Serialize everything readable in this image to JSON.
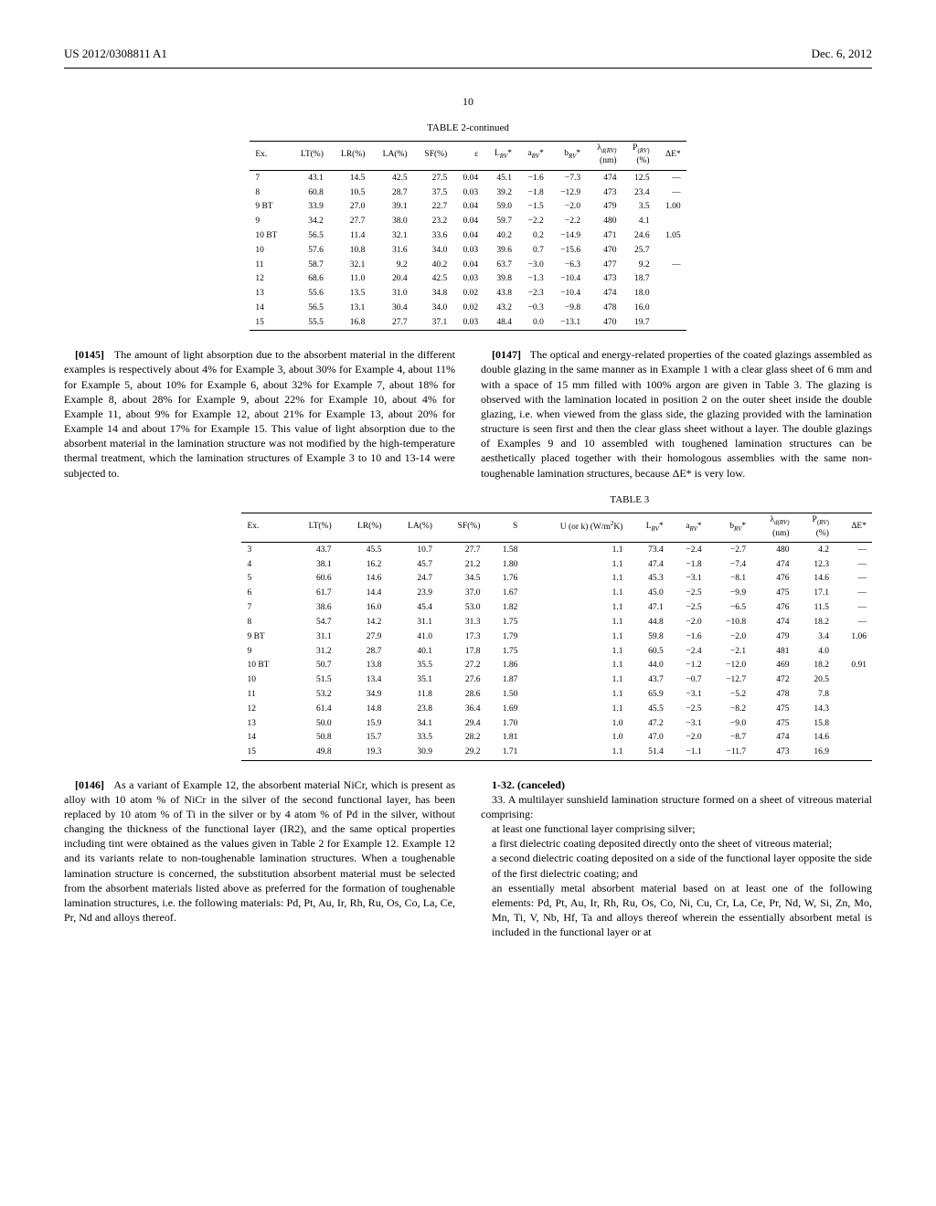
{
  "header": {
    "left": "US 2012/0308811 A1",
    "right": "Dec. 6, 2012"
  },
  "page_number": "10",
  "table2": {
    "title": "TABLE 2-continued",
    "columns": [
      "Ex.",
      "LT(%)",
      "LR(%)",
      "LA(%)",
      "SF(%)",
      "ε",
      "L_RV*",
      "a_RV*",
      "b_RV*",
      "λ_d(RV) (nm)",
      "P_(RV) (%)",
      "ΔE*"
    ],
    "rows": [
      [
        "7",
        "43.1",
        "14.5",
        "42.5",
        "27.5",
        "0.04",
        "45.1",
        "−1.6",
        "−7.3",
        "474",
        "12.5",
        "—"
      ],
      [
        "8",
        "60.8",
        "10.5",
        "28.7",
        "37.5",
        "0.03",
        "39.2",
        "−1.8",
        "−12.9",
        "473",
        "23.4",
        "—"
      ],
      [
        "9 BT",
        "33.9",
        "27.0",
        "39.1",
        "22.7",
        "0.04",
        "59.0",
        "−1.5",
        "−2.0",
        "479",
        "3.5",
        "1.00"
      ],
      [
        "9",
        "34.2",
        "27.7",
        "38.0",
        "23.2",
        "0.04",
        "59.7",
        "−2.2",
        "−2.2",
        "480",
        "4.1",
        ""
      ],
      [
        "10 BT",
        "56.5",
        "11.4",
        "32.1",
        "33.6",
        "0.04",
        "40.2",
        "0.2",
        "−14.9",
        "471",
        "24.6",
        "1.05"
      ],
      [
        "10",
        "57.6",
        "10.8",
        "31.6",
        "34.0",
        "0.03",
        "39.6",
        "0.7",
        "−15.6",
        "470",
        "25.7",
        ""
      ],
      [
        "11",
        "58.7",
        "32.1",
        "9.2",
        "40.2",
        "0.04",
        "63.7",
        "−3.0",
        "−6.3",
        "477",
        "9.2",
        "—"
      ],
      [
        "12",
        "68.6",
        "11.0",
        "20.4",
        "42.5",
        "0.03",
        "39.8",
        "−1.3",
        "−10.4",
        "473",
        "18.7",
        ""
      ],
      [
        "13",
        "55.6",
        "13.5",
        "31.0",
        "34.8",
        "0.02",
        "43.8",
        "−2.3",
        "−10.4",
        "474",
        "18.0",
        ""
      ],
      [
        "14",
        "56.5",
        "13.1",
        "30.4",
        "34.0",
        "0.02",
        "43.2",
        "−0.3",
        "−9.8",
        "478",
        "16.0",
        ""
      ],
      [
        "15",
        "55.5",
        "16.8",
        "27.7",
        "37.1",
        "0.03",
        "48.4",
        "0.0",
        "−13.1",
        "470",
        "19.7",
        ""
      ]
    ]
  },
  "para145": {
    "num": "[0145]",
    "text": "The amount of light absorption due to the absorbent material in the different examples is respectively about 4% for Example 3, about 30% for Example 4, about 11% for Example 5, about 10% for Example 6, about 32% for Example 7, about 18% for Example 8, about 28% for Example 9, about 22% for Example 10, about 4% for Example 11, about 9% for Example 12, about 21% for Example 13, about 20% for Example 14 and about 17% for Example 15. This value of light absorption due to the absorbent material in the lamination structure was not modified by the high-temperature thermal treatment, which the lamination structures of Example 3 to 10 and 13-14 were subjected to."
  },
  "para147": {
    "num": "[0147]",
    "text": "The optical and energy-related properties of the coated glazings assembled as double glazing in the same manner as in Example 1 with a clear glass sheet of 6 mm and with a space of 15 mm filled with 100% argon are given in Table 3. The glazing is observed with the lamination located in position 2 on the outer sheet inside the double glazing, i.e. when viewed from the glass side, the glazing provided with the lamination structure is seen first and then the clear glass sheet without a layer. The double glazings of Examples 9 and 10 assembled with toughened lamination structures can be aesthetically placed together with their homologous assemblies with the same non-toughenable lamination structures, because ΔE* is very low."
  },
  "table3": {
    "title": "TABLE 3",
    "columns": [
      "Ex.",
      "LT(%)",
      "LR(%)",
      "LA(%)",
      "SF(%)",
      "S",
      "U (or k) (W/m²K)",
      "L_RV*",
      "a_RV*",
      "b_RV*",
      "λ_d(RV) (nm)",
      "P_(RV) (%)",
      "ΔE*"
    ],
    "rows": [
      [
        "3",
        "43.7",
        "45.5",
        "10.7",
        "27.7",
        "1.58",
        "1.1",
        "73.4",
        "−2.4",
        "−2.7",
        "480",
        "4.2",
        "—"
      ],
      [
        "4",
        "38.1",
        "16.2",
        "45.7",
        "21.2",
        "1.80",
        "1.1",
        "47.4",
        "−1.8",
        "−7.4",
        "474",
        "12.3",
        "—"
      ],
      [
        "5",
        "60.6",
        "14.6",
        "24.7",
        "34.5",
        "1.76",
        "1.1",
        "45.3",
        "−3.1",
        "−8.1",
        "476",
        "14.6",
        "—"
      ],
      [
        "6",
        "61.7",
        "14.4",
        "23.9",
        "37.0",
        "1.67",
        "1.1",
        "45.0",
        "−2.5",
        "−9.9",
        "475",
        "17.1",
        "—"
      ],
      [
        "7",
        "38.6",
        "16.0",
        "45.4",
        "53.0",
        "1.82",
        "1.1",
        "47.1",
        "−2.5",
        "−6.5",
        "476",
        "11.5",
        "—"
      ],
      [
        "8",
        "54.7",
        "14.2",
        "31.1",
        "31.3",
        "1.75",
        "1.1",
        "44.8",
        "−2.0",
        "−10.8",
        "474",
        "18.2",
        "—"
      ],
      [
        "9 BT",
        "31.1",
        "27.9",
        "41.0",
        "17.3",
        "1.79",
        "1.1",
        "59.8",
        "−1.6",
        "−2.0",
        "479",
        "3.4",
        "1.06"
      ],
      [
        "9",
        "31.2",
        "28.7",
        "40.1",
        "17.8",
        "1.75",
        "1.1",
        "60.5",
        "−2.4",
        "−2.1",
        "481",
        "4.0",
        ""
      ],
      [
        "10 BT",
        "50.7",
        "13.8",
        "35.5",
        "27.2",
        "1.86",
        "1.1",
        "44.0",
        "−1.2",
        "−12.0",
        "469",
        "18.2",
        "0.91"
      ],
      [
        "10",
        "51.5",
        "13.4",
        "35.1",
        "27.6",
        "1.87",
        "1.1",
        "43.7",
        "−0.7",
        "−12.7",
        "472",
        "20.5",
        ""
      ],
      [
        "11",
        "53.2",
        "34.9",
        "11.8",
        "28.6",
        "1.50",
        "1.1",
        "65.9",
        "−3.1",
        "−5.2",
        "478",
        "7.8",
        ""
      ],
      [
        "12",
        "61.4",
        "14.8",
        "23.8",
        "36.4",
        "1.69",
        "1.1",
        "45.5",
        "−2.5",
        "−8.2",
        "475",
        "14.3",
        ""
      ],
      [
        "13",
        "50.0",
        "15.9",
        "34.1",
        "29.4",
        "1.70",
        "1.0",
        "47.2",
        "−3.1",
        "−9.0",
        "475",
        "15.8",
        ""
      ],
      [
        "14",
        "50.8",
        "15.7",
        "33.5",
        "28.2",
        "1.81",
        "1.0",
        "47.0",
        "−2.0",
        "−8.7",
        "474",
        "14.6",
        ""
      ],
      [
        "15",
        "49.8",
        "19.3",
        "30.9",
        "29.2",
        "1.71",
        "1.1",
        "51.4",
        "−1.1",
        "−11.7",
        "473",
        "16.9",
        ""
      ]
    ]
  },
  "para146": {
    "num": "[0146]",
    "text": "As a variant of Example 12, the absorbent material NiCr, which is present as alloy with 10 atom % of NiCr in the silver of the second functional layer, has been replaced by 10 atom % of Ti in the silver or by 4 atom % of Pd in the silver, without changing the thickness of the functional layer (IR2), and the same optical properties including tint were obtained as the values given in Table 2 for Example 12. Example 12 and its variants relate to non-toughenable lamination structures. When a toughenable lamination structure is concerned, the substitution absorbent material must be selected from the absorbent materials listed above as preferred for the formation of toughenable lamination structures, i.e. the following materials: Pd, Pt, Au, Ir, Rh, Ru, Os, Co, La, Ce, Pr, Nd and alloys thereof."
  },
  "claims": {
    "cancel": "1-32. (canceled)",
    "c33": "33. A multilayer sunshield lamination structure formed on a sheet of vitreous material comprising:",
    "c33a": "at least one functional layer comprising silver;",
    "c33b": "a first dielectric coating deposited directly onto the sheet of vitreous material;",
    "c33c": "a second dielectric coating deposited on a side of the functional layer opposite the side of the first dielectric coating; and",
    "c33d": "an essentially metal absorbent material based on at least one of the following elements: Pd, Pt, Au, Ir, Rh, Ru, Os, Co, Ni, Cu, Cr, La, Ce, Pr, Nd, W, Si, Zn, Mo, Mn, Ti, V, Nb, Hf, Ta and alloys thereof wherein the essentially absorbent metal is included in the functional layer or at"
  }
}
